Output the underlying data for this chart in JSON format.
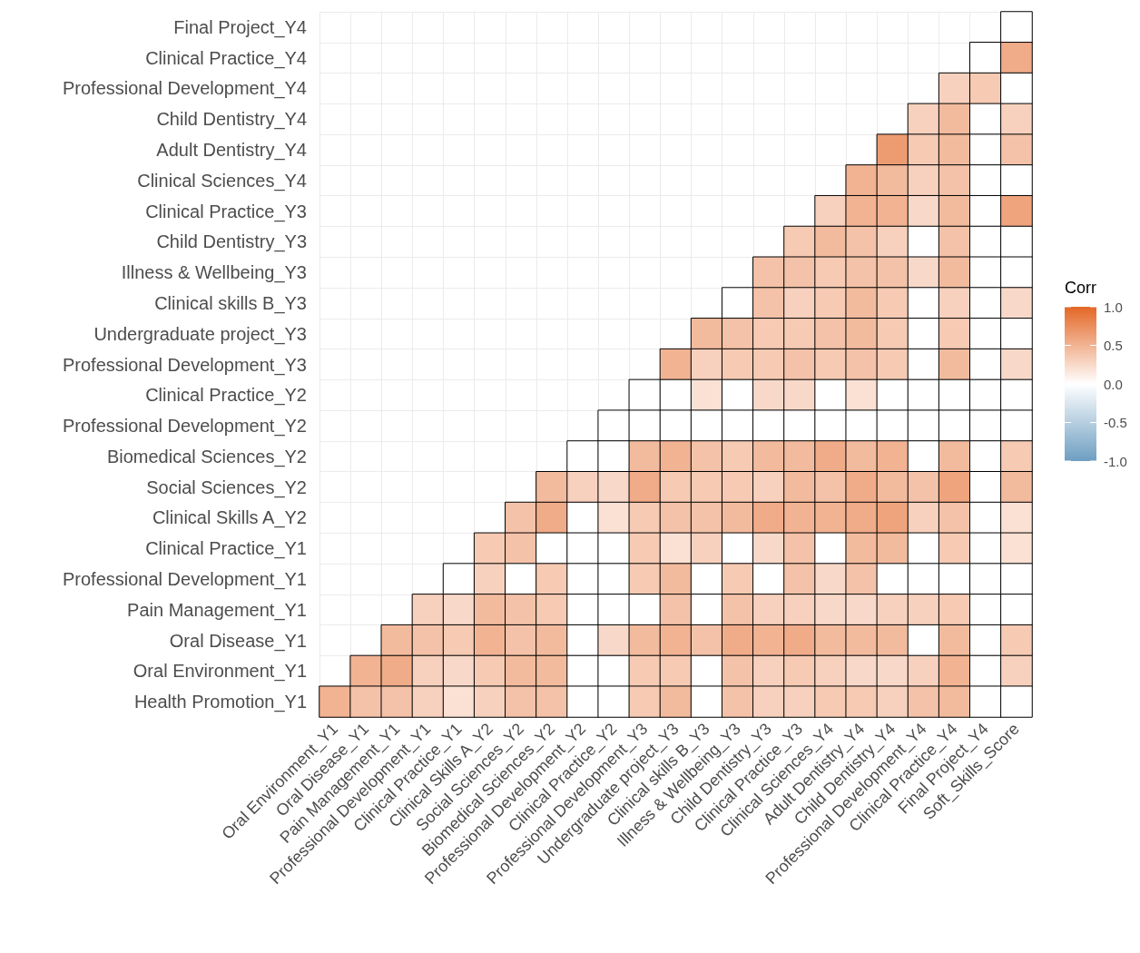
{
  "chart_data": {
    "type": "heatmap",
    "clabel": "Corr",
    "grid": true,
    "categories": [
      "Oral Environment_Y1",
      "Oral Disease_Y1",
      "Pain Management_Y1",
      "Professional Development_Y1",
      "Clinical Practice_Y1",
      "Clinical Skills A_Y2",
      "Social Sciences_Y2",
      "Biomedical Sciences_Y2",
      "Professional Development_Y2",
      "Clinical Practice_Y2",
      "Professional Development_Y3",
      "Undergraduate project_Y3",
      "Clinical skills B_Y3",
      "Illness & Wellbeing_Y3",
      "Child Dentistry_Y3",
      "Clinical Practice_Y3",
      "Clinical Sciences_Y4",
      "Adult Dentistry_Y4",
      "Child Dentistry_Y4",
      "Professional Development_Y4",
      "Clinical Practice_Y4",
      "Final Project_Y4",
      "Soft_Skills_Score"
    ],
    "y_categories": [
      "Final Project_Y4",
      "Clinical Practice_Y4",
      "Professional Development_Y4",
      "Child Dentistry_Y4",
      "Adult Dentistry_Y4",
      "Clinical Sciences_Y4",
      "Clinical Practice_Y3",
      "Child Dentistry_Y3",
      "Illness & Wellbeing_Y3",
      "Clinical skills B_Y3",
      "Undergraduate project_Y3",
      "Professional Development_Y3",
      "Clinical Practice_Y2",
      "Professional Development_Y2",
      "Biomedical Sciences_Y2",
      "Social Sciences_Y2",
      "Clinical Skills A_Y2",
      "Clinical Practice_Y1",
      "Professional Development_Y1",
      "Pain Management_Y1",
      "Oral Disease_Y1",
      "Oral Environment_Y1",
      "Health Promotion_Y1"
    ],
    "cells": [
      [
        null,
        null,
        null,
        null,
        null,
        null,
        null,
        null,
        null,
        null,
        null,
        null,
        null,
        null,
        null,
        null,
        null,
        null,
        null,
        null,
        null,
        null,
        0
      ],
      [
        null,
        null,
        null,
        null,
        null,
        null,
        null,
        null,
        null,
        null,
        null,
        null,
        null,
        null,
        null,
        null,
        null,
        null,
        null,
        null,
        null,
        0,
        0.55
      ],
      [
        null,
        null,
        null,
        null,
        null,
        null,
        null,
        null,
        null,
        null,
        null,
        null,
        null,
        null,
        null,
        null,
        null,
        null,
        null,
        null,
        0.3,
        0.35,
        0
      ],
      [
        null,
        null,
        null,
        null,
        null,
        null,
        null,
        null,
        null,
        null,
        null,
        null,
        null,
        null,
        null,
        null,
        null,
        null,
        null,
        0.3,
        0.45,
        0,
        0.3
      ],
      [
        null,
        null,
        null,
        null,
        null,
        null,
        null,
        null,
        null,
        null,
        null,
        null,
        null,
        null,
        null,
        null,
        null,
        null,
        0.65,
        0.35,
        0.45,
        0,
        0.4
      ],
      [
        null,
        null,
        null,
        null,
        null,
        null,
        null,
        null,
        null,
        null,
        null,
        null,
        null,
        null,
        null,
        null,
        null,
        0.5,
        0.45,
        0.3,
        0.4,
        0,
        0
      ],
      [
        null,
        null,
        null,
        null,
        null,
        null,
        null,
        null,
        null,
        null,
        null,
        null,
        null,
        null,
        null,
        null,
        0.3,
        0.5,
        0.5,
        0.25,
        0.45,
        0,
        0.6
      ],
      [
        null,
        null,
        null,
        null,
        null,
        null,
        null,
        null,
        null,
        null,
        null,
        null,
        null,
        null,
        null,
        0.35,
        0.45,
        0.4,
        0.3,
        0,
        0.4,
        0,
        0
      ],
      [
        null,
        null,
        null,
        null,
        null,
        null,
        null,
        null,
        null,
        null,
        null,
        null,
        null,
        null,
        0.4,
        0.4,
        0.35,
        0.4,
        0.4,
        0.25,
        0.45,
        0,
        0
      ],
      [
        null,
        null,
        null,
        null,
        null,
        null,
        null,
        null,
        null,
        null,
        null,
        null,
        null,
        0,
        0.4,
        0.3,
        0.35,
        0.45,
        0.35,
        0,
        0.3,
        0,
        0.25
      ],
      [
        null,
        null,
        null,
        null,
        null,
        null,
        null,
        null,
        null,
        null,
        null,
        null,
        0.45,
        0.4,
        0.35,
        0.35,
        0.4,
        0.45,
        0.35,
        0,
        0.35,
        0,
        0
      ],
      [
        null,
        null,
        null,
        null,
        null,
        null,
        null,
        null,
        null,
        null,
        null,
        0.5,
        0.3,
        0.35,
        0.35,
        0.4,
        0.35,
        0.4,
        0.35,
        0,
        0.45,
        0,
        0.25
      ],
      [
        null,
        null,
        null,
        null,
        null,
        null,
        null,
        null,
        null,
        null,
        0,
        0,
        0.2,
        0,
        0.25,
        0.25,
        0,
        0.2,
        0,
        0,
        0,
        0,
        0
      ],
      [
        null,
        null,
        null,
        null,
        null,
        null,
        null,
        null,
        null,
        0,
        0,
        0,
        0,
        0,
        0,
        0,
        0,
        0,
        0,
        0,
        0,
        0,
        0
      ],
      [
        null,
        null,
        null,
        null,
        null,
        null,
        null,
        null,
        0,
        0,
        0.45,
        0.5,
        0.4,
        0.35,
        0.45,
        0.45,
        0.55,
        0.45,
        0.5,
        0,
        0.45,
        0,
        0.35
      ],
      [
        null,
        null,
        null,
        null,
        null,
        null,
        null,
        0.45,
        0.3,
        0.25,
        0.55,
        0.35,
        0.35,
        0.35,
        0.3,
        0.45,
        0.4,
        0.55,
        0.45,
        0.4,
        0.6,
        0,
        0.45
      ],
      [
        null,
        null,
        null,
        null,
        null,
        null,
        0.4,
        0.55,
        0,
        0.2,
        0.35,
        0.4,
        0.4,
        0.45,
        0.55,
        0.5,
        0.5,
        0.55,
        0.6,
        0.3,
        0.4,
        0,
        0.2
      ],
      [
        null,
        null,
        null,
        null,
        null,
        0.35,
        0.4,
        0,
        0,
        0,
        0.35,
        0.2,
        0.3,
        0,
        0.25,
        0.4,
        0,
        0.45,
        0.45,
        0,
        0.35,
        0,
        0.2
      ],
      [
        null,
        null,
        null,
        null,
        0,
        0.3,
        0,
        0.35,
        0,
        0,
        0.35,
        0.45,
        0,
        0.35,
        0,
        0.4,
        0.25,
        0.4,
        0,
        0,
        0,
        0,
        0
      ],
      [
        null,
        null,
        null,
        0.3,
        0.25,
        0.45,
        0.4,
        0.35,
        0,
        0,
        0,
        0.4,
        0,
        0.4,
        0.3,
        0.3,
        0.25,
        0.25,
        0.3,
        0.3,
        0.35,
        0,
        0
      ],
      [
        null,
        null,
        0.45,
        0.4,
        0.35,
        0.5,
        0.4,
        0.45,
        0,
        0.25,
        0.45,
        0.5,
        0.4,
        0.55,
        0.5,
        0.55,
        0.45,
        0.45,
        0.45,
        0,
        0.45,
        0,
        0.35
      ],
      [
        null,
        0.5,
        0.55,
        0.3,
        0.25,
        0.35,
        0.45,
        0.45,
        0,
        0,
        0.35,
        0.35,
        0,
        0.4,
        0.3,
        0.35,
        0.3,
        0.25,
        0.25,
        0.3,
        0.5,
        0,
        0.3
      ],
      [
        0.5,
        0.4,
        0.4,
        0.3,
        0.2,
        0.3,
        0.4,
        0.4,
        0,
        0,
        0.35,
        0.45,
        0,
        0.4,
        0.3,
        0.3,
        0.35,
        0.35,
        0.3,
        0.4,
        0.45,
        0,
        0
      ]
    ],
    "clim": [
      -1,
      1
    ],
    "cticks": [
      {
        "value": 1,
        "label": "1.0"
      },
      {
        "value": 0.5,
        "label": "0.5"
      },
      {
        "value": 0,
        "label": "0.0"
      },
      {
        "value": -0.5,
        "label": "-0.5"
      },
      {
        "value": -1,
        "label": "-1.0"
      }
    ]
  }
}
